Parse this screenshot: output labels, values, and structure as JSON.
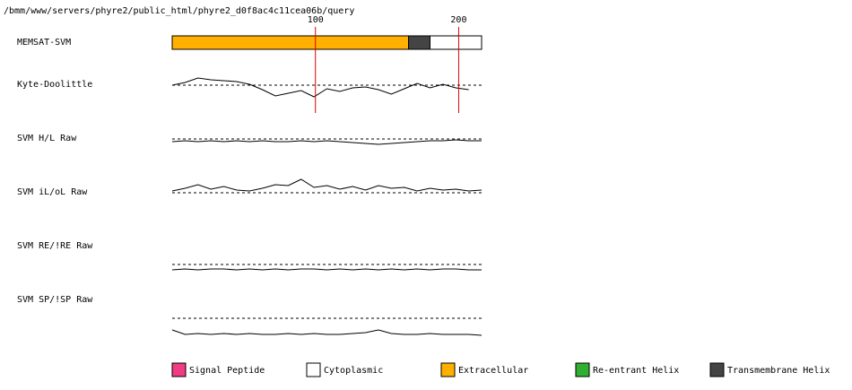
{
  "title": "/bmm/www/servers/phyre2/public_html/phyre2_d0f8ac4c11cea06b/query",
  "chart_data": {
    "type": "memsat",
    "xlim": [
      0,
      216
    ],
    "xticks": [
      100,
      200
    ],
    "tick_color": "#e00000",
    "bar": {
      "name": "MEMSAT-SVM",
      "segments": [
        {
          "start": 0,
          "end": 165,
          "color": "#ffb000"
        },
        {
          "start": 165,
          "end": 180,
          "color": "#444444"
        },
        {
          "start": 180,
          "end": 216,
          "color": "#ffffff"
        }
      ]
    },
    "traces": [
      {
        "name": "Kyte-Doolittle",
        "ylim": [
          -2,
          2
        ],
        "baseline": 0,
        "x": [
          0,
          9,
          18,
          27,
          36,
          45,
          54,
          63,
          72,
          81,
          90,
          99,
          108,
          117,
          126,
          135,
          144,
          153,
          162,
          171,
          180,
          189,
          198,
          207
        ],
        "values": [
          0,
          0.3,
          0.8,
          0.6,
          0.5,
          0.4,
          0.1,
          -0.5,
          -1.2,
          -0.9,
          -0.6,
          -1.3,
          -0.4,
          -0.7,
          -0.3,
          -0.2,
          -0.5,
          -1.0,
          -0.4,
          0.2,
          -0.3,
          0.1,
          -0.3,
          -0.5
        ]
      },
      {
        "name": "SVM H/L Raw",
        "ylim": [
          -2,
          2
        ],
        "baseline": 0,
        "x": [
          0,
          9,
          18,
          27,
          36,
          45,
          54,
          63,
          72,
          81,
          90,
          99,
          108,
          117,
          126,
          135,
          144,
          153,
          162,
          171,
          180,
          189,
          198,
          207,
          216
        ],
        "values": [
          -0.3,
          -0.2,
          -0.3,
          -0.2,
          -0.3,
          -0.2,
          -0.3,
          -0.2,
          -0.3,
          -0.3,
          -0.2,
          -0.3,
          -0.2,
          -0.3,
          -0.4,
          -0.5,
          -0.6,
          -0.5,
          -0.4,
          -0.3,
          -0.2,
          -0.2,
          -0.1,
          -0.2,
          -0.2
        ]
      },
      {
        "name": "SVM iL/oL Raw",
        "ylim": [
          -2,
          2
        ],
        "baseline": 0,
        "x": [
          0,
          9,
          18,
          27,
          36,
          45,
          54,
          63,
          72,
          81,
          90,
          99,
          108,
          117,
          126,
          135,
          144,
          153,
          162,
          171,
          180,
          189,
          198,
          207,
          216
        ],
        "values": [
          0.2,
          0.5,
          0.9,
          0.4,
          0.7,
          0.3,
          0.2,
          0.5,
          0.9,
          0.8,
          1.5,
          0.6,
          0.8,
          0.4,
          0.7,
          0.3,
          0.8,
          0.5,
          0.6,
          0.2,
          0.5,
          0.3,
          0.4,
          0.2,
          0.3
        ]
      },
      {
        "name": "SVM RE/!RE Raw",
        "ylim": [
          -2,
          2
        ],
        "baseline": 0,
        "x": [
          0,
          9,
          18,
          27,
          36,
          45,
          54,
          63,
          72,
          81,
          90,
          99,
          108,
          117,
          126,
          135,
          144,
          153,
          162,
          171,
          180,
          189,
          198,
          207,
          216
        ],
        "values": [
          -0.6,
          -0.5,
          -0.6,
          -0.5,
          -0.5,
          -0.6,
          -0.5,
          -0.6,
          -0.5,
          -0.6,
          -0.5,
          -0.5,
          -0.6,
          -0.5,
          -0.6,
          -0.5,
          -0.6,
          -0.5,
          -0.6,
          -0.5,
          -0.6,
          -0.5,
          -0.5,
          -0.6,
          -0.6
        ]
      },
      {
        "name": "SVM SP/!SP Raw",
        "ylim": [
          -2,
          2
        ],
        "baseline": 0,
        "offset_top": true,
        "x": [
          0,
          9,
          18,
          27,
          36,
          45,
          54,
          63,
          72,
          81,
          90,
          99,
          108,
          117,
          126,
          135,
          144,
          153,
          162,
          171,
          180,
          189,
          198,
          207,
          216
        ],
        "values": [
          -1.3,
          -1.8,
          -1.7,
          -1.8,
          -1.7,
          -1.8,
          -1.7,
          -1.8,
          -1.8,
          -1.7,
          -1.8,
          -1.7,
          -1.8,
          -1.8,
          -1.7,
          -1.6,
          -1.3,
          -1.7,
          -1.8,
          -1.8,
          -1.7,
          -1.8,
          -1.8,
          -1.8,
          -1.9
        ]
      }
    ],
    "legend": [
      {
        "name": "Signal Peptide",
        "color": "#f03c82"
      },
      {
        "name": "Cytoplasmic",
        "color": "#ffffff"
      },
      {
        "name": "Extracellular",
        "color": "#ffb000"
      },
      {
        "name": "Re-entrant Helix",
        "color": "#30b030"
      },
      {
        "name": "Transmembrane Helix",
        "color": "#444444"
      }
    ]
  }
}
